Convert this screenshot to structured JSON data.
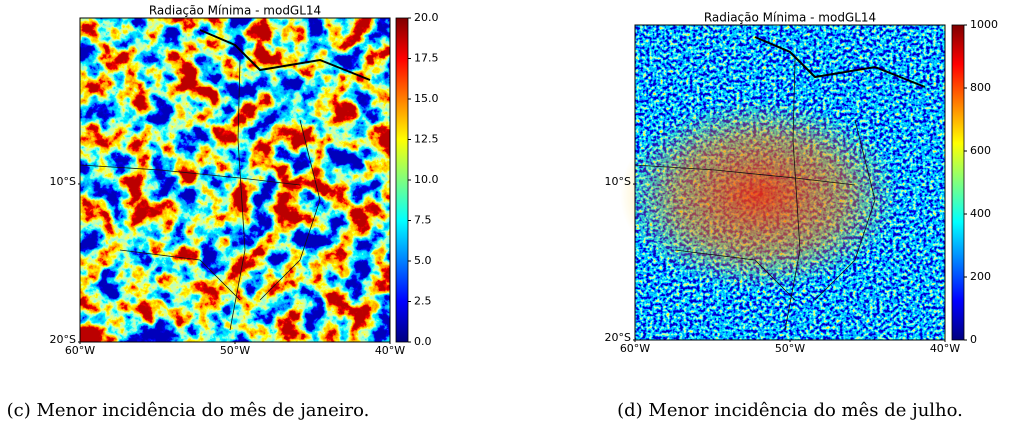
{
  "chart_data": [
    {
      "type": "map",
      "title": "Radiação Mínima - modGL14",
      "xlim": [
        -60,
        -40
      ],
      "ylim": [
        -20,
        0.5
      ],
      "xticks": [
        {
          "value": -60,
          "label": "60°W"
        },
        {
          "value": -50,
          "label": "50°W"
        },
        {
          "value": -40,
          "label": "40°W"
        }
      ],
      "yticks": [
        {
          "value": -10,
          "label": "10°S"
        },
        {
          "value": -20,
          "label": "20°S"
        }
      ],
      "colormap": "jet",
      "colorbar": {
        "lim": [
          0,
          20
        ],
        "ticks": [
          {
            "value": 0,
            "label": "0.0"
          },
          {
            "value": 2.5,
            "label": "2.5"
          },
          {
            "value": 5,
            "label": "5.0"
          },
          {
            "value": 7.5,
            "label": "7.5"
          },
          {
            "value": 10,
            "label": "10.0"
          },
          {
            "value": 12.5,
            "label": "12.5"
          },
          {
            "value": 15,
            "label": "15.0"
          },
          {
            "value": 17.5,
            "label": "17.5"
          },
          {
            "value": 20,
            "label": "20.0"
          }
        ]
      },
      "caption": "(c) Menor incidência do mês de janeiro."
    },
    {
      "type": "map",
      "title": "Radiação Mínima - modGL14",
      "xlim": [
        -60,
        -40
      ],
      "ylim": [
        -20,
        0.2
      ],
      "xticks": [
        {
          "value": -60,
          "label": "60°W"
        },
        {
          "value": -50,
          "label": "50°W"
        },
        {
          "value": -40,
          "label": "40°W"
        }
      ],
      "yticks": [
        {
          "value": -10,
          "label": "10°S"
        },
        {
          "value": -20,
          "label": "20°S"
        }
      ],
      "colormap": "jet",
      "colorbar": {
        "lim": [
          0,
          1000
        ],
        "ticks": [
          0,
          200,
          400,
          600,
          800,
          1000
        ]
      },
      "caption": "(d) Menor incidência do mês de julho."
    }
  ]
}
